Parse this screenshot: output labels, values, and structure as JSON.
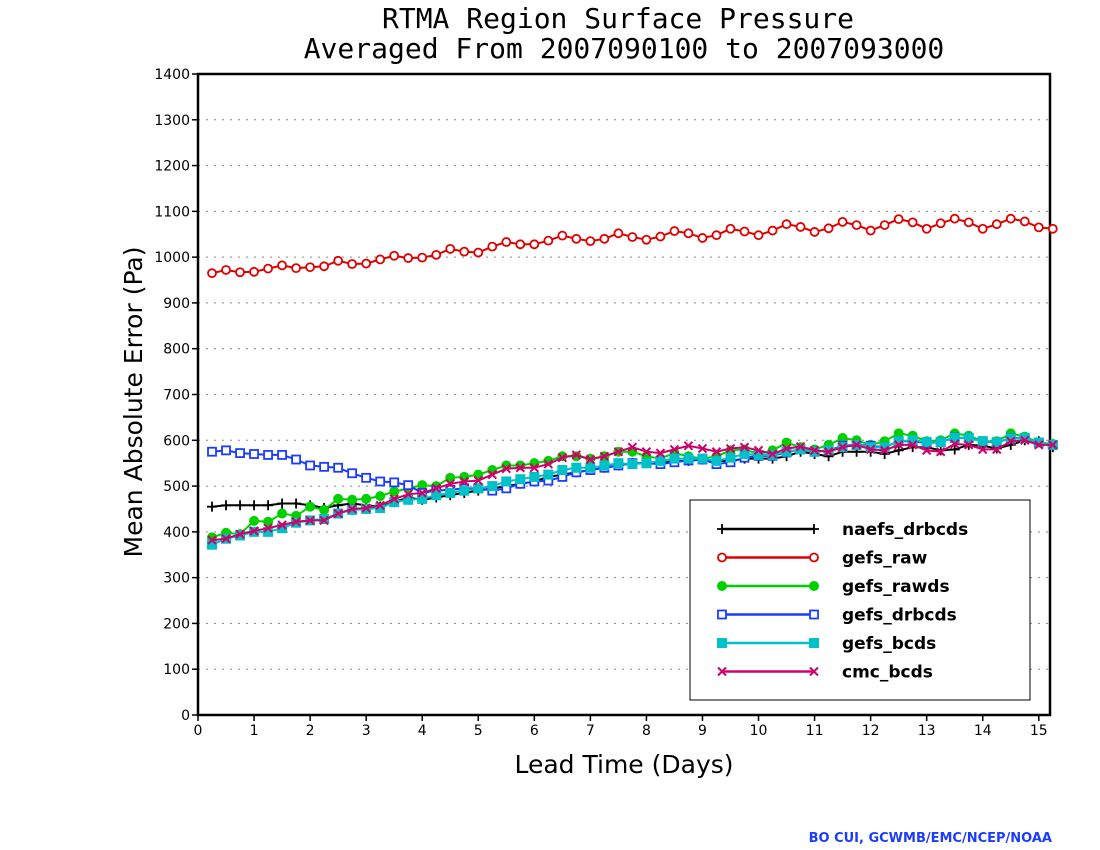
{
  "credit": "BO CUI, GCWMB/EMC/NCEP/NOAA",
  "chart_data": {
    "type": "line",
    "title": [
      "RTMA Region Surface Pressure",
      "Averaged From 2007090100 to 2007093000"
    ],
    "xlabel": "Lead Time (Days)",
    "ylabel": "Mean Absolute Error (Pa)",
    "xlim": [
      0,
      15.2
    ],
    "ylim": [
      0,
      1400
    ],
    "xticks": [
      0,
      1,
      2,
      3,
      4,
      5,
      6,
      7,
      8,
      9,
      10,
      11,
      12,
      13,
      14,
      15
    ],
    "yticks": [
      0,
      100,
      200,
      300,
      400,
      500,
      600,
      700,
      800,
      900,
      1000,
      1100,
      1200,
      1300,
      1400
    ],
    "grid": "horizontal dotted",
    "legend_position": "lower-right",
    "x": [
      0.25,
      0.5,
      0.75,
      1,
      1.25,
      1.5,
      1.75,
      2,
      2.25,
      2.5,
      2.75,
      3,
      3.25,
      3.5,
      3.75,
      4,
      4.25,
      4.5,
      4.75,
      5,
      5.25,
      5.5,
      5.75,
      6,
      6.25,
      6.5,
      6.75,
      7,
      7.25,
      7.5,
      7.75,
      8,
      8.25,
      8.5,
      8.75,
      9,
      9.25,
      9.5,
      9.75,
      10,
      10.25,
      10.5,
      10.75,
      11,
      11.25,
      11.5,
      11.75,
      12,
      12.25,
      12.5,
      12.75,
      13,
      13.25,
      13.5,
      13.75,
      14,
      14.25,
      14.5,
      14.75,
      15,
      15.25
    ],
    "series": [
      {
        "name": "naefs_drbcds",
        "color": "#000000",
        "marker": "plus",
        "values": [
          455,
          458,
          458,
          458,
          458,
          462,
          462,
          458,
          452,
          458,
          462,
          458,
          455,
          465,
          475,
          470,
          475,
          480,
          485,
          490,
          495,
          500,
          505,
          510,
          520,
          525,
          530,
          535,
          540,
          545,
          550,
          550,
          550,
          555,
          555,
          558,
          555,
          555,
          560,
          560,
          560,
          565,
          575,
          570,
          565,
          575,
          575,
          575,
          570,
          578,
          585,
          585,
          578,
          580,
          590,
          588,
          582,
          590,
          600,
          598,
          585
        ]
      },
      {
        "name": "gefs_raw",
        "color": "#e00000",
        "marker": "open-circle",
        "values": [
          965,
          972,
          967,
          968,
          975,
          982,
          976,
          978,
          980,
          992,
          985,
          986,
          995,
          1003,
          998,
          999,
          1005,
          1018,
          1012,
          1010,
          1023,
          1033,
          1028,
          1028,
          1036,
          1047,
          1040,
          1035,
          1040,
          1052,
          1044,
          1038,
          1045,
          1057,
          1052,
          1042,
          1048,
          1062,
          1056,
          1048,
          1058,
          1072,
          1066,
          1055,
          1063,
          1077,
          1070,
          1058,
          1070,
          1083,
          1076,
          1062,
          1074,
          1084,
          1076,
          1062,
          1072,
          1084,
          1078,
          1065,
          1062
        ]
      },
      {
        "name": "gefs_rawds",
        "color": "#00d000",
        "marker": "filled-circle",
        "values": [
          388,
          398,
          395,
          424,
          422,
          440,
          435,
          455,
          448,
          472,
          470,
          472,
          478,
          488,
          495,
          502,
          500,
          518,
          520,
          525,
          535,
          545,
          545,
          550,
          555,
          565,
          565,
          560,
          565,
          575,
          575,
          565,
          560,
          572,
          565,
          560,
          565,
          578,
          580,
          570,
          578,
          595,
          585,
          580,
          590,
          605,
          600,
          590,
          598,
          615,
          610,
          598,
          600,
          615,
          610,
          598,
          598,
          615,
          608,
          595,
          592
        ]
      },
      {
        "name": "gefs_drbcds",
        "color": "#1a3cff",
        "marker": "open-square",
        "values": [
          575,
          578,
          572,
          570,
          568,
          568,
          558,
          545,
          542,
          540,
          528,
          518,
          510,
          508,
          502,
          485,
          490,
          492,
          495,
          495,
          490,
          495,
          505,
          510,
          512,
          520,
          530,
          535,
          540,
          545,
          550,
          550,
          548,
          552,
          556,
          558,
          548,
          552,
          562,
          566,
          566,
          574,
          580,
          575,
          578,
          588,
          590,
          588,
          585,
          598,
          598,
          594,
          596,
          606,
          605,
          598,
          595,
          605,
          605,
          595,
          590
        ]
      },
      {
        "name": "gefs_bcds",
        "color": "#00c0c8",
        "marker": "filled-square",
        "values": [
          372,
          385,
          392,
          400,
          400,
          408,
          420,
          425,
          428,
          440,
          448,
          450,
          452,
          465,
          470,
          472,
          480,
          485,
          490,
          495,
          500,
          510,
          515,
          520,
          525,
          535,
          540,
          540,
          545,
          550,
          548,
          550,
          555,
          560,
          560,
          560,
          555,
          562,
          570,
          568,
          568,
          575,
          580,
          575,
          578,
          585,
          590,
          585,
          585,
          598,
          600,
          596,
          596,
          605,
          605,
          598,
          596,
          604,
          605,
          595,
          590
        ]
      },
      {
        "name": "cmc_bcds",
        "color": "#d0006a",
        "marker": "x",
        "values": [
          382,
          385,
          395,
          402,
          408,
          415,
          422,
          425,
          425,
          440,
          450,
          452,
          458,
          472,
          482,
          485,
          495,
          505,
          510,
          512,
          525,
          538,
          540,
          540,
          548,
          562,
          568,
          558,
          565,
          575,
          585,
          575,
          572,
          580,
          588,
          582,
          575,
          582,
          585,
          578,
          570,
          582,
          586,
          578,
          575,
          585,
          590,
          580,
          578,
          590,
          590,
          578,
          575,
          592,
          590,
          580,
          580,
          598,
          600,
          590,
          590
        ]
      }
    ]
  }
}
